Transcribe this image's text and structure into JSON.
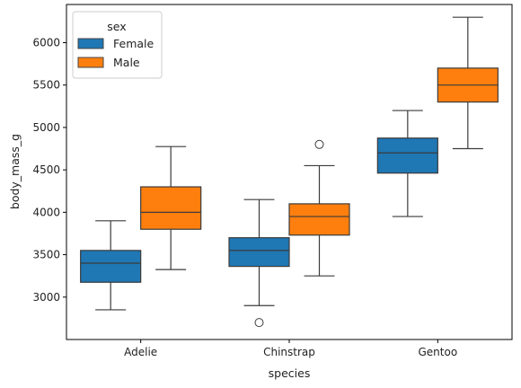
{
  "chart_data": {
    "type": "boxplot",
    "title": "",
    "xlabel": "species",
    "ylabel": "body_mass_g",
    "categories": [
      "Adelie",
      "Chinstrap",
      "Gentoo"
    ],
    "ylim": [
      2500,
      6450
    ],
    "yticks": [
      3000,
      3500,
      4000,
      4500,
      5000,
      5500,
      6000
    ],
    "grid": false,
    "legend": {
      "title": "sex",
      "placement": "top-left"
    },
    "series": [
      {
        "name": "Female",
        "color": "#1f77b4",
        "boxes": [
          {
            "whisker_low": 2850,
            "q1": 3175,
            "median": 3400,
            "q3": 3550,
            "whisker_high": 3900,
            "outliers": []
          },
          {
            "whisker_low": 2900,
            "q1": 3362,
            "median": 3550,
            "q3": 3700,
            "whisker_high": 4150,
            "outliers": [
              2700
            ]
          },
          {
            "whisker_low": 3950,
            "q1": 4462,
            "median": 4700,
            "q3": 4875,
            "whisker_high": 5200,
            "outliers": []
          }
        ]
      },
      {
        "name": "Male",
        "color": "#ff7f0e",
        "boxes": [
          {
            "whisker_low": 3325,
            "q1": 3800,
            "median": 4000,
            "q3": 4300,
            "whisker_high": 4775,
            "outliers": []
          },
          {
            "whisker_low": 3250,
            "q1": 3731,
            "median": 3950,
            "q3": 4100,
            "whisker_high": 4550,
            "outliers": [
              4800
            ]
          },
          {
            "whisker_low": 4750,
            "q1": 5300,
            "median": 5500,
            "q3": 5700,
            "whisker_high": 6300,
            "outliers": []
          }
        ]
      }
    ]
  }
}
